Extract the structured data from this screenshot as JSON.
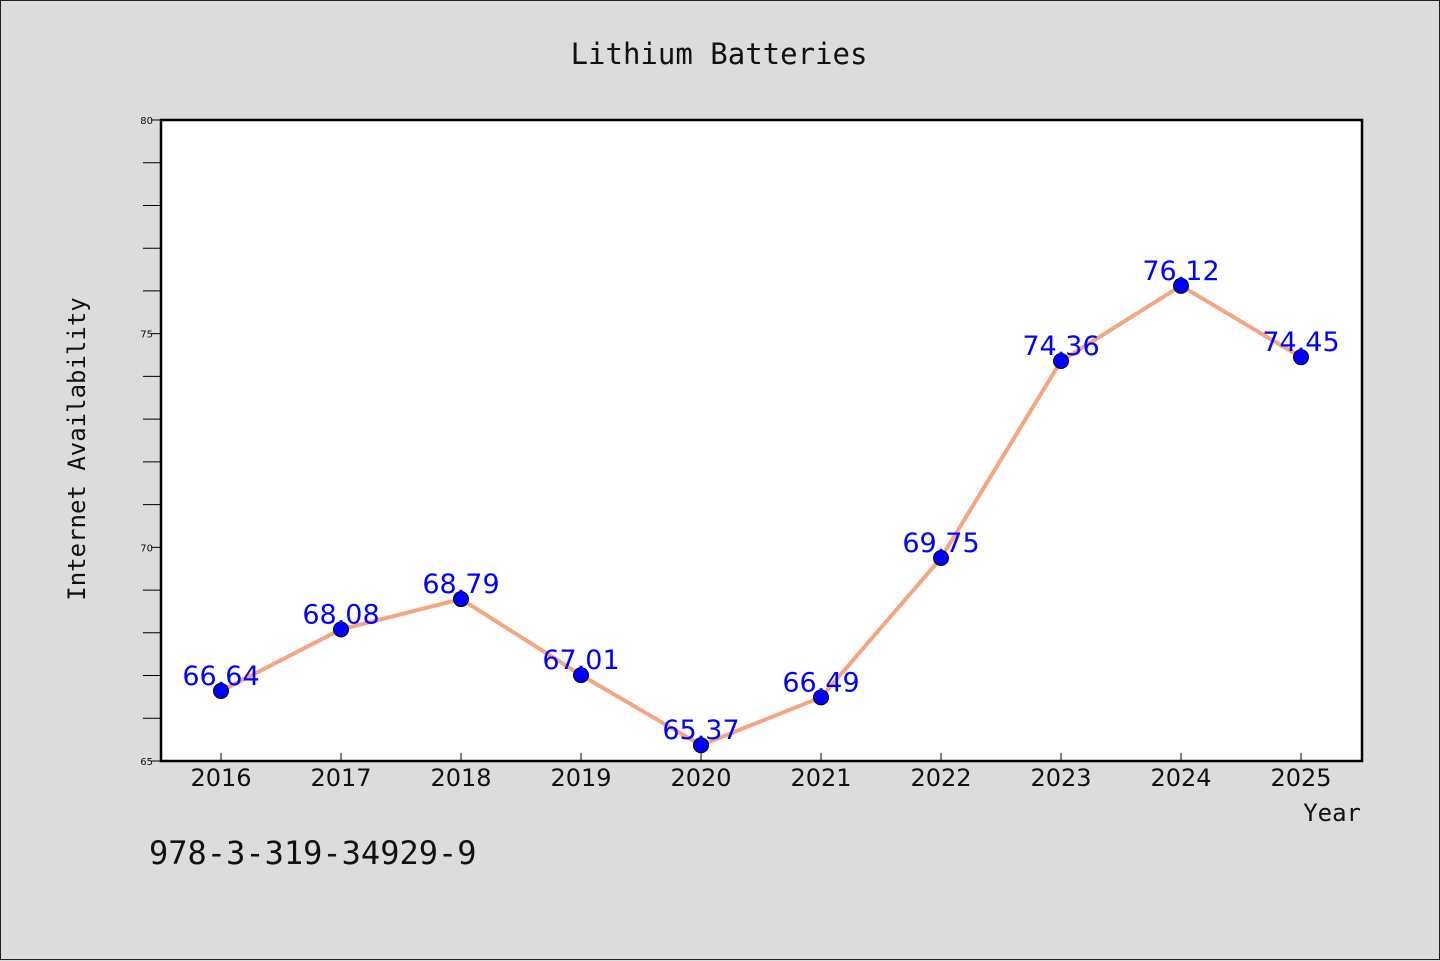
{
  "chart_data": {
    "type": "line",
    "title": "Lithium Batteries",
    "xlabel": "Year",
    "ylabel": "Internet Availability",
    "categories": [
      "2016",
      "2017",
      "2018",
      "2019",
      "2020",
      "2021",
      "2022",
      "2023",
      "2024",
      "2025"
    ],
    "series": [
      {
        "values": [
          66.64,
          68.08,
          68.79,
          67.01,
          65.37,
          66.49,
          69.75,
          74.36,
          76.12,
          74.45
        ],
        "line_color": "#f4a582",
        "marker_color": "#0000ff",
        "label_color": "#0000ff"
      }
    ],
    "ylim": [
      65,
      80
    ],
    "yticks": [
      65,
      70,
      75,
      80
    ],
    "grid": false,
    "legend": "none"
  },
  "footer": {
    "code": "978-3-319-34929-9"
  },
  "colors": {
    "background": "#dcdcdc",
    "plot_area": "#ffffff"
  }
}
